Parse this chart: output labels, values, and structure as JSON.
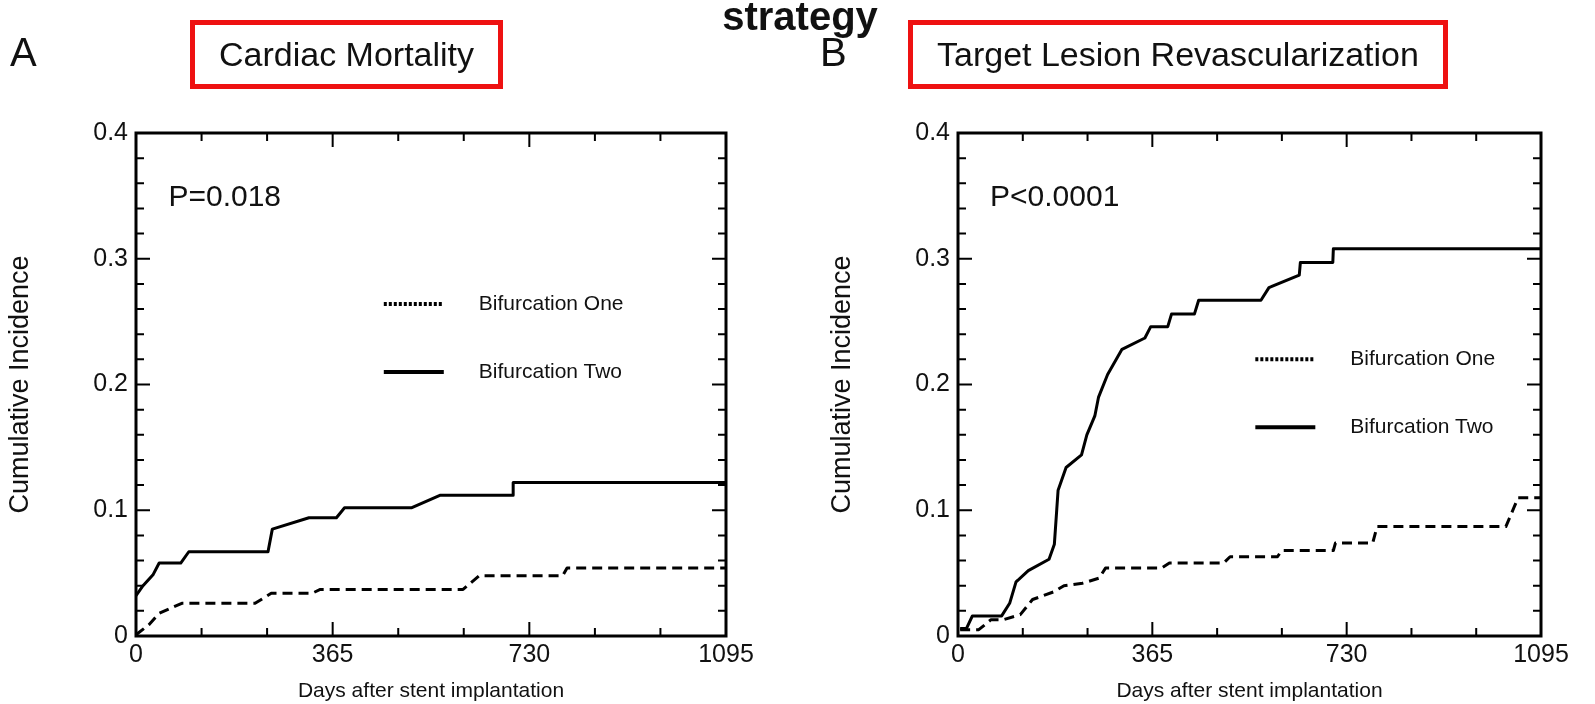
{
  "chart_data": [
    {
      "type": "line",
      "title": "Cardiac Mortality",
      "xlabel": "Days after stent implantation",
      "ylabel": "Cumulative Incidence",
      "annotations": [
        "A",
        "P=0.018",
        "strategy"
      ],
      "legend": "right",
      "grid": false,
      "xlim": [
        0,
        1095
      ],
      "ylim": [
        0,
        0.4
      ],
      "xticks": [
        0,
        {
          "value": 121.7,
          "label": null
        },
        {
          "value": 243.3,
          "label": null
        },
        365,
        {
          "value": 486.7,
          "label": null
        },
        {
          "value": 608.3,
          "label": null
        },
        730,
        {
          "value": 851.7,
          "label": null
        },
        {
          "value": 973.3,
          "label": null
        },
        1095
      ],
      "yticks": [
        0,
        {
          "value": 0.02,
          "label": null
        },
        {
          "value": 0.04,
          "label": null
        },
        {
          "value": 0.06,
          "label": null
        },
        {
          "value": 0.08,
          "label": null
        },
        0.1,
        {
          "value": 0.12,
          "label": null
        },
        {
          "value": 0.14,
          "label": null
        },
        {
          "value": 0.16,
          "label": null
        },
        {
          "value": 0.18,
          "label": null
        },
        0.2,
        {
          "value": 0.22,
          "label": null
        },
        {
          "value": 0.24,
          "label": null
        },
        {
          "value": 0.26,
          "label": null
        },
        {
          "value": 0.28,
          "label": null
        },
        0.3,
        {
          "value": 0.32,
          "label": null
        },
        {
          "value": 0.34,
          "label": null
        },
        {
          "value": 0.36,
          "label": null
        },
        {
          "value": 0.38,
          "label": null
        },
        0.4
      ],
      "series": [
        {
          "name": "Bifurcation One",
          "color": "#000000",
          "line_style": "dashed",
          "x": [
            0,
            24,
            43,
            85,
            221,
            251,
            327,
            342,
            607,
            637,
            792,
            800,
            1095
          ],
          "values": [
            0.001,
            0.009,
            0.018,
            0.026,
            0.026,
            0.034,
            0.034,
            0.037,
            0.037,
            0.048,
            0.048,
            0.054,
            0.054
          ]
        },
        {
          "name": "Bifurcation Two",
          "color": "#000000",
          "line_style": "solid",
          "x": [
            0,
            13,
            32,
            43,
            83,
            98,
            245,
            253,
            321,
            372,
            387,
            512,
            565,
            700,
            700,
            1095
          ],
          "values": [
            0.032,
            0.04,
            0.049,
            0.058,
            0.058,
            0.067,
            0.067,
            0.085,
            0.094,
            0.094,
            0.102,
            0.102,
            0.112,
            0.112,
            0.122,
            0.122
          ]
        }
      ]
    },
    {
      "type": "line",
      "title": "Target Lesion Revascularization",
      "xlabel": "Days after stent implantation",
      "ylabel": "Cumulative Incidence",
      "annotations": [
        "B",
        "P<0.0001"
      ],
      "legend": "right",
      "grid": false,
      "xlim": [
        0,
        1095
      ],
      "ylim": [
        0,
        0.4
      ],
      "xticks": [
        0,
        {
          "value": 121.7,
          "label": null
        },
        {
          "value": 243.3,
          "label": null
        },
        365,
        {
          "value": 486.7,
          "label": null
        },
        {
          "value": 608.3,
          "label": null
        },
        730,
        {
          "value": 851.7,
          "label": null
        },
        {
          "value": 973.3,
          "label": null
        },
        1095
      ],
      "yticks": [
        0,
        {
          "value": 0.02,
          "label": null
        },
        {
          "value": 0.04,
          "label": null
        },
        {
          "value": 0.06,
          "label": null
        },
        {
          "value": 0.08,
          "label": null
        },
        0.1,
        {
          "value": 0.12,
          "label": null
        },
        {
          "value": 0.14,
          "label": null
        },
        {
          "value": 0.16,
          "label": null
        },
        {
          "value": 0.18,
          "label": null
        },
        0.2,
        {
          "value": 0.22,
          "label": null
        },
        {
          "value": 0.24,
          "label": null
        },
        {
          "value": 0.26,
          "label": null
        },
        {
          "value": 0.28,
          "label": null
        },
        0.3,
        {
          "value": 0.32,
          "label": null
        },
        {
          "value": 0.34,
          "label": null
        },
        {
          "value": 0.36,
          "label": null
        },
        {
          "value": 0.38,
          "label": null
        },
        0.4
      ],
      "series": [
        {
          "name": "Bifurcation One",
          "color": "#000000",
          "line_style": "dashed",
          "x": [
            4,
            39,
            62,
            86,
            117,
            140,
            179,
            199,
            234,
            265,
            277,
            382,
            397,
            499,
            511,
            600,
            608,
            705,
            709,
            779,
            787,
            1029,
            1052,
            1095
          ],
          "values": [
            0.005,
            0.005,
            0.013,
            0.013,
            0.017,
            0.029,
            0.035,
            0.04,
            0.042,
            0.046,
            0.054,
            0.054,
            0.058,
            0.058,
            0.063,
            0.063,
            0.068,
            0.068,
            0.074,
            0.074,
            0.087,
            0.087,
            0.11,
            0.11
          ]
        },
        {
          "name": "Bifurcation Two",
          "color": "#000000",
          "line_style": "solid",
          "x": [
            4,
            16,
            27,
            82,
            97,
            109,
            132,
            171,
            181,
            188,
            203,
            232,
            242,
            257,
            264,
            281,
            308,
            351,
            362,
            394,
            401,
            444,
            452,
            569,
            584,
            641,
            643,
            704,
            705,
            1095
          ],
          "values": [
            0.006,
            0.006,
            0.016,
            0.016,
            0.026,
            0.043,
            0.052,
            0.061,
            0.073,
            0.116,
            0.134,
            0.144,
            0.16,
            0.175,
            0.19,
            0.208,
            0.228,
            0.237,
            0.246,
            0.246,
            0.256,
            0.256,
            0.267,
            0.267,
            0.277,
            0.287,
            0.297,
            0.297,
            0.308,
            0.308
          ]
        }
      ]
    }
  ]
}
